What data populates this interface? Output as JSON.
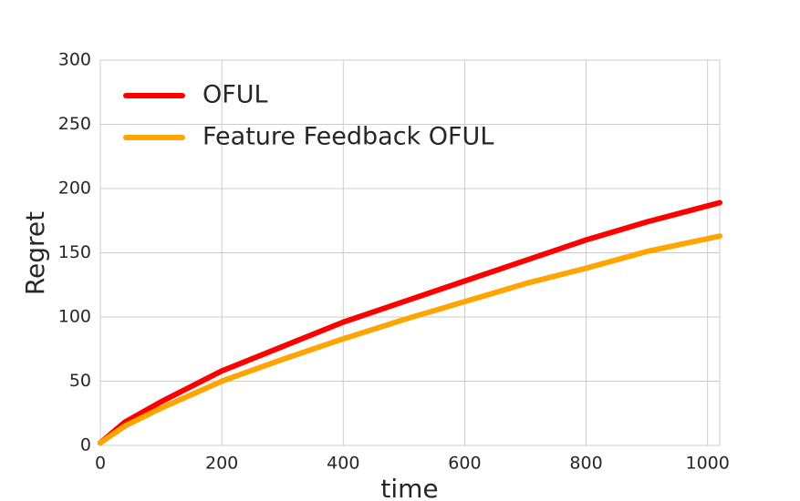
{
  "chart_data": {
    "type": "line",
    "x_label": "time",
    "y_label": "Regret",
    "x": [
      0,
      40,
      100,
      200,
      300,
      400,
      500,
      600,
      700,
      800,
      900,
      1020
    ],
    "series": [
      {
        "name": "OFUL",
        "color": "#ff0000",
        "values": [
          2,
          18,
          34,
          58,
          77,
          96,
          112,
          128,
          144,
          160,
          174,
          189
        ]
      },
      {
        "name": "Feature Feedback OFUL",
        "color": "#ffa500",
        "values": [
          2,
          15,
          29,
          50,
          67,
          83,
          98,
          112,
          126,
          138,
          151,
          163
        ]
      }
    ],
    "xlim": [
      0,
      1020
    ],
    "xticks": [
      0,
      200,
      400,
      600,
      800,
      1000
    ],
    "ylim": [
      0,
      300
    ],
    "yticks": [
      0,
      50,
      100,
      150,
      200,
      250,
      300
    ],
    "grid": true,
    "legend": "upper left"
  }
}
